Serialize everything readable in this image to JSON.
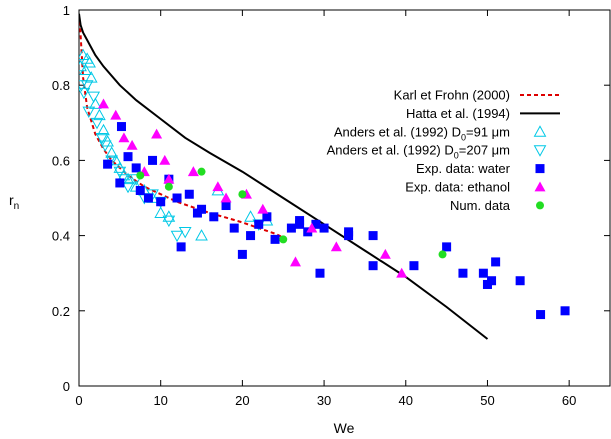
{
  "chart_data": {
    "type": "scatter",
    "title": "",
    "xlabel": "We",
    "ylabel_main": "r",
    "ylabel_sub": "n",
    "xlim": [
      0,
      65
    ],
    "ylim": [
      0,
      1
    ],
    "xticks": [
      0,
      10,
      20,
      30,
      40,
      50,
      60
    ],
    "yticks": [
      0,
      0.2,
      0.4,
      0.6,
      0.8,
      1
    ],
    "ytick_labels": [
      "0",
      "0.2",
      "0.4",
      "0.6",
      "0.8",
      "1"
    ],
    "grid": false,
    "legend_position": "right",
    "series": [
      {
        "name": "Karl et Frohn (2000)",
        "kind": "line",
        "style": "dashed",
        "color": "#dd0000",
        "x": [
          0.1,
          0.5,
          1,
          2,
          3,
          4,
          5,
          6,
          7,
          8,
          10,
          12,
          14,
          16,
          18,
          20,
          22,
          24,
          25
        ],
        "y": [
          0.97,
          0.82,
          0.74,
          0.67,
          0.63,
          0.6,
          0.58,
          0.56,
          0.545,
          0.53,
          0.51,
          0.49,
          0.475,
          0.46,
          0.448,
          0.435,
          0.42,
          0.405,
          0.395
        ]
      },
      {
        "name": "Hatta et al. (1994)",
        "kind": "line",
        "style": "solid",
        "color": "#000000",
        "x": [
          0,
          0.2,
          0.5,
          1,
          2,
          3,
          5,
          7,
          10,
          13,
          16,
          20,
          25,
          30,
          35,
          40,
          45,
          50
        ],
        "y": [
          0.99,
          0.96,
          0.94,
          0.92,
          0.88,
          0.85,
          0.8,
          0.76,
          0.71,
          0.66,
          0.62,
          0.57,
          0.5,
          0.43,
          0.36,
          0.29,
          0.21,
          0.125
        ]
      },
      {
        "name_prefix": "Anders et al. (1992) D",
        "name_sub": "0",
        "name_suffix": "=91 μm",
        "kind": "marker",
        "marker": "triangle-up-open",
        "color": "#00c8e6",
        "points": [
          [
            0.2,
            0.85
          ],
          [
            0.5,
            0.88
          ],
          [
            0.8,
            0.84
          ],
          [
            1,
            0.87
          ],
          [
            1.3,
            0.86
          ],
          [
            1.5,
            0.82
          ],
          [
            2,
            0.75
          ],
          [
            2.5,
            0.72
          ],
          [
            3,
            0.68
          ],
          [
            3.5,
            0.65
          ],
          [
            4,
            0.62
          ],
          [
            4.5,
            0.6
          ],
          [
            5,
            0.58
          ],
          [
            5.5,
            0.56
          ],
          [
            6,
            0.55
          ],
          [
            7,
            0.53
          ],
          [
            8,
            0.52
          ],
          [
            9,
            0.5
          ],
          [
            10,
            0.46
          ],
          [
            11,
            0.45
          ],
          [
            15,
            0.4
          ],
          [
            17,
            0.52
          ],
          [
            21,
            0.45
          ],
          [
            23,
            0.44
          ]
        ]
      },
      {
        "name_prefix": "Anders et al. (1992) D",
        "name_sub": "0",
        "name_suffix": "=207 μm",
        "kind": "marker",
        "marker": "triangle-down-open",
        "color": "#00c8e6",
        "points": [
          [
            0.3,
            0.8
          ],
          [
            0.6,
            0.78
          ],
          [
            1,
            0.8
          ],
          [
            1.2,
            0.73
          ],
          [
            1.8,
            0.77
          ],
          [
            2.2,
            0.7
          ],
          [
            2.8,
            0.66
          ],
          [
            3.2,
            0.64
          ],
          [
            4,
            0.6
          ],
          [
            5,
            0.57
          ],
          [
            5.5,
            0.55
          ],
          [
            6,
            0.53
          ],
          [
            7,
            0.55
          ],
          [
            8,
            0.5
          ],
          [
            9,
            0.51
          ],
          [
            10,
            0.49
          ],
          [
            11,
            0.44
          ],
          [
            12,
            0.4
          ],
          [
            13,
            0.41
          ],
          [
            22,
            0.43
          ]
        ]
      },
      {
        "name": "Exp. data: water",
        "kind": "marker",
        "marker": "square",
        "color": "#0000ff",
        "points": [
          [
            3.5,
            0.59
          ],
          [
            5,
            0.54
          ],
          [
            5.2,
            0.69
          ],
          [
            6,
            0.61
          ],
          [
            7,
            0.58
          ],
          [
            7.5,
            0.52
          ],
          [
            8.5,
            0.5
          ],
          [
            9,
            0.6
          ],
          [
            10,
            0.49
          ],
          [
            11,
            0.55
          ],
          [
            12,
            0.5
          ],
          [
            12.5,
            0.37
          ],
          [
            13.5,
            0.51
          ],
          [
            14.5,
            0.46
          ],
          [
            15,
            0.47
          ],
          [
            16.5,
            0.45
          ],
          [
            18,
            0.48
          ],
          [
            19,
            0.42
          ],
          [
            20,
            0.35
          ],
          [
            21,
            0.4
          ],
          [
            22,
            0.43
          ],
          [
            23,
            0.45
          ],
          [
            24,
            0.39
          ],
          [
            26,
            0.42
          ],
          [
            27,
            0.43
          ],
          [
            27,
            0.44
          ],
          [
            28,
            0.41
          ],
          [
            29,
            0.43
          ],
          [
            29.5,
            0.3
          ],
          [
            30,
            0.42
          ],
          [
            33,
            0.4
          ],
          [
            33,
            0.41
          ],
          [
            36,
            0.4
          ],
          [
            36,
            0.32
          ],
          [
            41,
            0.32
          ],
          [
            45,
            0.37
          ],
          [
            47,
            0.3
          ],
          [
            49.5,
            0.3
          ],
          [
            50,
            0.27
          ],
          [
            50.5,
            0.28
          ],
          [
            51,
            0.33
          ],
          [
            54,
            0.28
          ],
          [
            56.5,
            0.19
          ],
          [
            59.5,
            0.2
          ]
        ]
      },
      {
        "name": "Exp. data: ethanol",
        "kind": "marker",
        "marker": "triangle-up",
        "color": "#ff00ff",
        "points": [
          [
            3,
            0.75
          ],
          [
            4.5,
            0.72
          ],
          [
            5.5,
            0.66
          ],
          [
            6.5,
            0.64
          ],
          [
            8,
            0.57
          ],
          [
            9.5,
            0.67
          ],
          [
            10.5,
            0.6
          ],
          [
            11,
            0.55
          ],
          [
            14,
            0.57
          ],
          [
            17,
            0.53
          ],
          [
            18,
            0.5
          ],
          [
            20.5,
            0.51
          ],
          [
            22.5,
            0.47
          ],
          [
            26.5,
            0.33
          ],
          [
            28.5,
            0.42
          ],
          [
            31.5,
            0.37
          ],
          [
            37.5,
            0.35
          ],
          [
            39.5,
            0.3
          ]
        ]
      },
      {
        "name": "Num. data",
        "kind": "marker",
        "marker": "circle",
        "color": "#22dd22",
        "points": [
          [
            7.5,
            0.56
          ],
          [
            11,
            0.53
          ],
          [
            15,
            0.57
          ],
          [
            20,
            0.51
          ],
          [
            25,
            0.39
          ],
          [
            44.5,
            0.35
          ]
        ]
      }
    ]
  }
}
